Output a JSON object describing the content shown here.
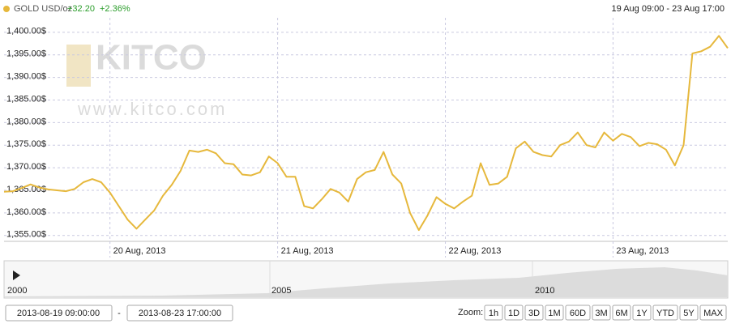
{
  "header": {
    "instrument": "GOLD USD/oz",
    "change": "+32.20",
    "change_pct": "+2.36%",
    "range": "19 Aug 09:00 - 23 Aug 17:00"
  },
  "watermark": {
    "brand": "KITCO",
    "url": "www.kitco.com"
  },
  "chart_data": {
    "type": "line",
    "categories": [
      null,
      null,
      null,
      null,
      null,
      null,
      null,
      null,
      null,
      null,
      null,
      null,
      "20 Aug, 2013",
      null,
      null,
      null,
      null,
      null,
      null,
      null,
      null,
      null,
      null,
      null,
      null,
      null,
      null,
      null,
      null,
      null,
      null,
      "21 Aug, 2013",
      null,
      null,
      null,
      null,
      null,
      null,
      null,
      null,
      null,
      null,
      null,
      null,
      null,
      null,
      null,
      null,
      null,
      null,
      "22 Aug, 2013",
      null,
      null,
      null,
      null,
      null,
      null,
      null,
      null,
      null,
      null,
      null,
      null,
      null,
      null,
      null,
      null,
      null,
      null,
      "23 Aug, 2013",
      null,
      null,
      null,
      null,
      null,
      null,
      null,
      null,
      null,
      null,
      null,
      null,
      null
    ],
    "series": [
      {
        "name": "GOLD USD/oz",
        "color": "#e6b83c",
        "values": [
          1364.7,
          1364.8,
          1365.5,
          1366.3,
          1365.6,
          1365.2,
          1365.0,
          1364.8,
          1365.3,
          1366.8,
          1367.5,
          1366.8,
          1364.5,
          1361.5,
          1358.5,
          1356.5,
          1358.5,
          1360.5,
          1363.8,
          1366.2,
          1369.3,
          1373.8,
          1373.5,
          1374.0,
          1373.2,
          1371.0,
          1370.8,
          1368.5,
          1368.3,
          1369.0,
          1372.5,
          1371.0,
          1368.0,
          1368.0,
          1361.5,
          1361.0,
          1363.0,
          1365.3,
          1364.5,
          1362.5,
          1367.5,
          1369.0,
          1369.5,
          1373.5,
          1368.5,
          1366.5,
          1360.0,
          1356.2,
          1359.5,
          1363.5,
          1362.0,
          1361.0,
          1362.5,
          1363.8,
          1371.0,
          1366.2,
          1366.5,
          1368.0,
          1374.3,
          1375.8,
          1373.5,
          1372.8,
          1372.5,
          1375.0,
          1375.8,
          1377.8,
          1375.0,
          1374.5,
          1377.8,
          1376.0,
          1377.5,
          1376.8,
          1374.8,
          1375.5,
          1375.2,
          1374.0,
          1370.5,
          1375.0,
          1395.3,
          1395.8,
          1396.8,
          1399.2,
          1396.5
        ]
      }
    ],
    "ylim": [
      1353.7,
      1403.2
    ],
    "yticks": [
      {
        "value": 1355,
        "label": "1,355.00$"
      },
      {
        "value": 1360,
        "label": "1,360.00$"
      },
      {
        "value": 1365,
        "label": "1,365.00$"
      },
      {
        "value": 1370,
        "label": "1,370.00$"
      },
      {
        "value": 1375,
        "label": "1,375.00$"
      },
      {
        "value": 1380,
        "label": "1,380.00$"
      },
      {
        "value": 1385,
        "label": "1,385.00$"
      },
      {
        "value": 1390,
        "label": "1,390.00$"
      },
      {
        "value": 1395,
        "label": "1,395.00$"
      },
      {
        "value": 1400,
        "label": "1,400.00$"
      }
    ],
    "grid": true
  },
  "navigator": {
    "labels": [
      "2000",
      "2005",
      "2010"
    ]
  },
  "controls": {
    "from": "2013-08-19 09:00:00",
    "separator": "-",
    "to": "2013-08-23 17:00:00",
    "zoom_label": "Zoom:",
    "zoom": [
      "1h",
      "1D",
      "3D",
      "1M",
      "60D",
      "3M",
      "6M",
      "1Y",
      "YTD",
      "5Y",
      "MAX"
    ]
  }
}
